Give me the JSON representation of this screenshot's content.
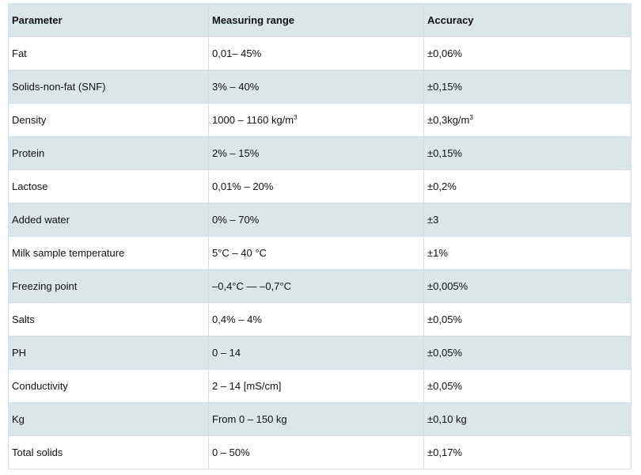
{
  "table": {
    "headers": [
      "Parameter",
      "Measuring range",
      "Accuracy"
    ],
    "rows": [
      {
        "parameter": "Fat",
        "range": "0,01– 45%",
        "accuracy": "±0,06%"
      },
      {
        "parameter": "Solids-non-fat (SNF)",
        "range": "3% – 40%",
        "accuracy": "±0,15%"
      },
      {
        "parameter": "Density",
        "range": "1000 – 1160 kg/m",
        "range_sup": "3",
        "accuracy": "±0,3kg/m",
        "accuracy_sup": "3"
      },
      {
        "parameter": "Protein",
        "range": "2% – 15%",
        "accuracy": "±0,15%"
      },
      {
        "parameter": "Lactose",
        "range": "0,01% – 20%",
        "accuracy": "±0,2%"
      },
      {
        "parameter": "Added water",
        "range": "0% – 70%",
        "accuracy": "±3"
      },
      {
        "parameter": "Milk sample temperature",
        "range": "5°C – 40 °C",
        "accuracy": "±1%"
      },
      {
        "parameter": "Freezing point",
        "range": "–0,4°C — –0,7°C",
        "accuracy": "±0,005%"
      },
      {
        "parameter": "Salts",
        "range": "0,4% – 4%",
        "accuracy": "±0,05%"
      },
      {
        "parameter": "PH",
        "range": "0 – 14",
        "accuracy": "±0,05%"
      },
      {
        "parameter": "Conductivity",
        "range": "2 – 14 [mS/cm]",
        "accuracy": "±0,05%"
      },
      {
        "parameter": "Kg",
        "range": "From 0 – 150 kg",
        "accuracy": "±0,10 kg"
      },
      {
        "parameter": "Total solids",
        "range": "0 – 50%",
        "accuracy": "±0,17%"
      }
    ]
  },
  "colors": {
    "row_shade": "#d9e6ec",
    "row_plain": "#ffffff",
    "border": "#d4dfe5"
  }
}
